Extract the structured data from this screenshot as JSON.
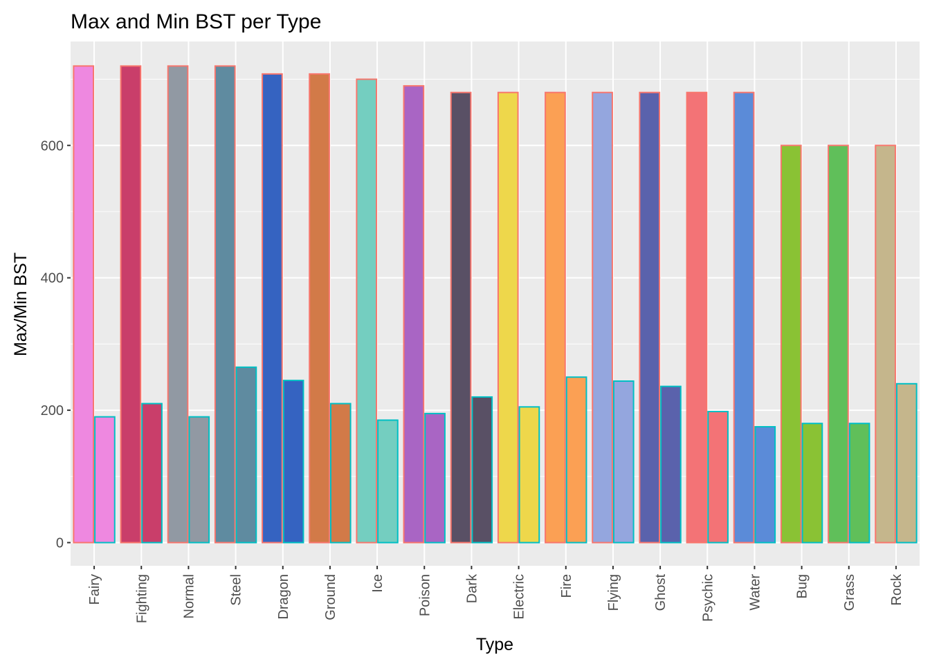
{
  "chart_data": {
    "type": "bar",
    "title": "Max and Min BST per Type",
    "xlabel": "Type",
    "ylabel": "Max/Min BST",
    "ylim": [
      -35,
      757
    ],
    "y_ticks": [
      0,
      200,
      400,
      600
    ],
    "grid": true,
    "categories": [
      "Fairy",
      "Fighting",
      "Normal",
      "Steel",
      "Dragon",
      "Ground",
      "Ice",
      "Poison",
      "Dark",
      "Electric",
      "Fire",
      "Flying",
      "Ghost",
      "Psychic",
      "Water",
      "Bug",
      "Grass",
      "Rock"
    ],
    "fill_colors": [
      "#EE88E0",
      "#C93E6A",
      "#9199A3",
      "#5F8BA0",
      "#3563C1",
      "#D27A48",
      "#74CEC0",
      "#A965C4",
      "#595065",
      "#EED74B",
      "#FBA054",
      "#94A6DE",
      "#5A62AC",
      "#F37376",
      "#5B8BD8",
      "#8AC234",
      "#60BF5A",
      "#C5B68C"
    ],
    "series": [
      {
        "values": [
          720,
          720,
          720,
          720,
          708,
          708,
          700,
          690,
          680,
          680,
          680,
          680,
          680,
          680,
          680,
          600,
          600,
          600
        ],
        "outline_color": "#F8766D"
      },
      {
        "values": [
          190,
          210,
          190,
          265,
          245,
          210,
          185,
          195,
          220,
          205,
          250,
          244,
          236,
          198,
          175,
          180,
          180,
          240
        ],
        "outline_color": "#00BFC4"
      }
    ]
  }
}
